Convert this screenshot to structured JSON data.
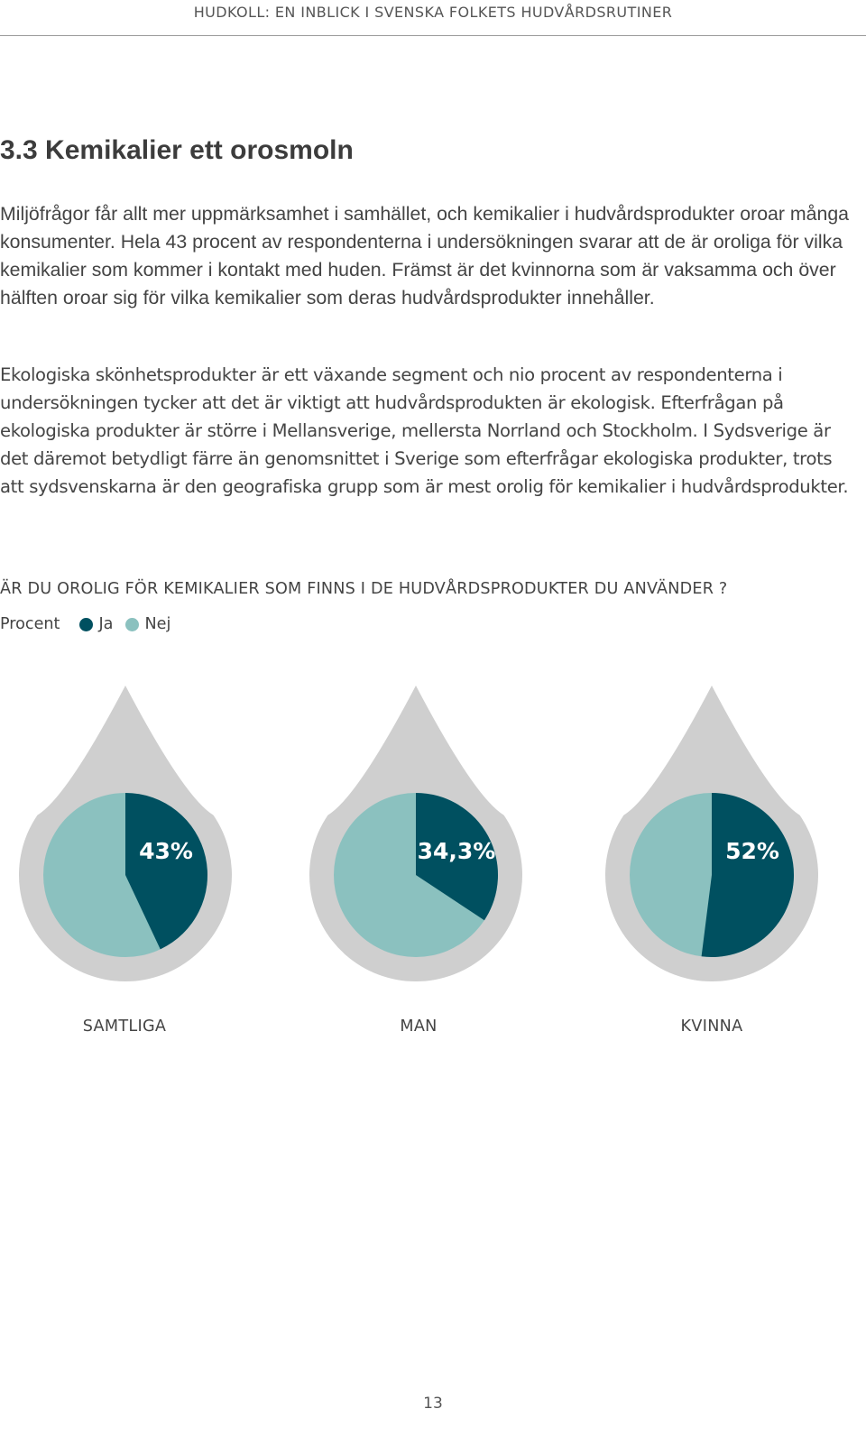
{
  "header": {
    "running_title": "HUDKOLL: EN INBLICK I SVENSKA FOLKETS HUDVÅRDSRUTINER"
  },
  "section": {
    "title": "3.3  Kemikalier ett orosmoln",
    "paragraphs": [
      "Miljöfrågor får allt mer uppmärksamhet i samhället, och kemikalier i hudvårdsprodukter oroar många konsumenter. Hela 43 procent av respondenterna i undersökningen svarar att de är oroliga för vilka kemikalier som kommer i kontakt med huden. Främst är det kvinnorna som är vaksamma och över hälften oroar sig för vilka kemikalier som deras hudvårdsprodukter innehåller.",
      "Ekologiska skönhetsprodukter är ett växande segment och nio procent av respondenterna i undersökningen tycker att det är viktigt att hudvårdsprodukten är ekologisk. Efterfrågan på ekologiska produkter är större i Mellansverige, mellersta Norrland och Stockholm. I Sydsverige är det däremot betydligt färre än genomsnittet i Sverige som efterfrågar ekologiska produkter, trots att sydsvenskarna är den geografiska grupp som är mest orolig för kemikalier i hudvårdsprodukter."
    ]
  },
  "chart_data": {
    "type": "pie",
    "title": "ÄR DU OROLIG FÖR KEMIKALIER SOM FINNS I DE HUDVÅRDSPRODUKTER DU ANVÄNDER ?",
    "unit_label": "Procent",
    "legend": [
      {
        "name": "Ja",
        "color": "#005060"
      },
      {
        "name": "Nej",
        "color": "#8bc1bf"
      }
    ],
    "drop_color": "#cfcfcf",
    "categories": [
      "SAMTLIGA",
      "MAN",
      "KVINNA"
    ],
    "series": [
      {
        "name": "Ja",
        "values": [
          43,
          34.3,
          52
        ]
      },
      {
        "name": "Nej",
        "values": [
          57,
          65.7,
          48
        ]
      }
    ],
    "value_labels": [
      "43%",
      "34,3%",
      "52%"
    ]
  },
  "footer": {
    "page_number": "13"
  }
}
